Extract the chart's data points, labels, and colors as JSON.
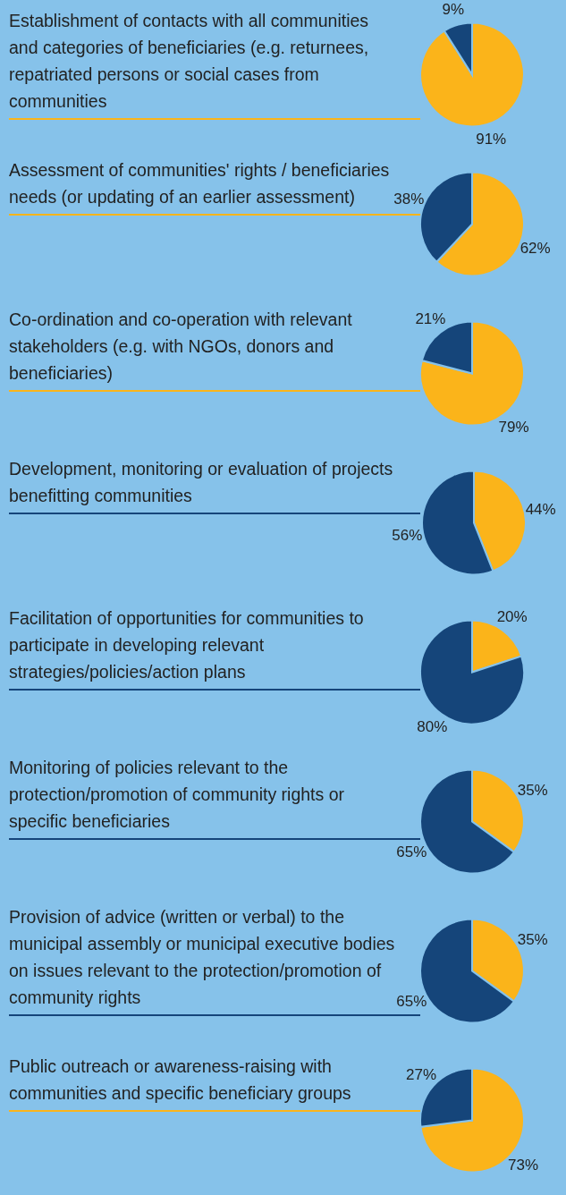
{
  "chart_data": [
    {
      "type": "pie",
      "title": "Establishment of contacts with all communities and categories of beneficiaries (e.g. returnees, repatriated persons or social cases from communities",
      "categories": [
        null,
        null
      ],
      "values": [
        91,
        9
      ],
      "colors": [
        "#fbb41a",
        "#15457a"
      ],
      "value_labels": [
        "91%",
        "9%"
      ]
    },
    {
      "type": "pie",
      "title": "Assessment of communities' rights / beneficiaries needs (or updating of an earlier assessment)",
      "categories": [
        null,
        null
      ],
      "values": [
        62,
        38
      ],
      "colors": [
        "#fbb41a",
        "#15457a"
      ],
      "value_labels": [
        "62%",
        "38%"
      ]
    },
    {
      "type": "pie",
      "title": "Co-ordination and co-operation with relevant stakeholders (e.g. with NGOs, donors and beneficiaries)",
      "categories": [
        null,
        null
      ],
      "values": [
        79,
        21
      ],
      "colors": [
        "#fbb41a",
        "#15457a"
      ],
      "value_labels": [
        "79%",
        "21%"
      ]
    },
    {
      "type": "pie",
      "title": "Development, monitoring or evaluation of projects benefitting communities",
      "categories": [
        null,
        null
      ],
      "values": [
        44,
        56
      ],
      "colors": [
        "#fbb41a",
        "#15457a"
      ],
      "value_labels": [
        "44%",
        "56%"
      ]
    },
    {
      "type": "pie",
      "title": "Facilitation of opportunities for communities to participate in developing relevant strategies/policies/action plans",
      "categories": [
        null,
        null
      ],
      "values": [
        20,
        80
      ],
      "colors": [
        "#fbb41a",
        "#15457a"
      ],
      "value_labels": [
        "20%",
        "80%"
      ]
    },
    {
      "type": "pie",
      "title": "Monitoring of policies relevant to the protection/promotion of community rights or specific beneficiaries",
      "categories": [
        null,
        null
      ],
      "values": [
        35,
        65
      ],
      "colors": [
        "#fbb41a",
        "#15457a"
      ],
      "value_labels": [
        "35%",
        "65%"
      ]
    },
    {
      "type": "pie",
      "title": "Provision of advice (written or verbal) to the municipal assembly or municipal executive bodies on issues relevant to the protection/promotion of community rights",
      "categories": [
        null,
        null
      ],
      "values": [
        35,
        65
      ],
      "colors": [
        "#fbb41a",
        "#15457a"
      ],
      "value_labels": [
        "35%",
        "65%"
      ]
    },
    {
      "type": "pie",
      "title": "Public outreach or awareness-raising with communities and specific beneficiary groups",
      "categories": [
        null,
        null
      ],
      "values": [
        73,
        27
      ],
      "colors": [
        "#fbb41a",
        "#15457a"
      ],
      "value_labels": [
        "73%",
        "27%"
      ]
    }
  ]
}
